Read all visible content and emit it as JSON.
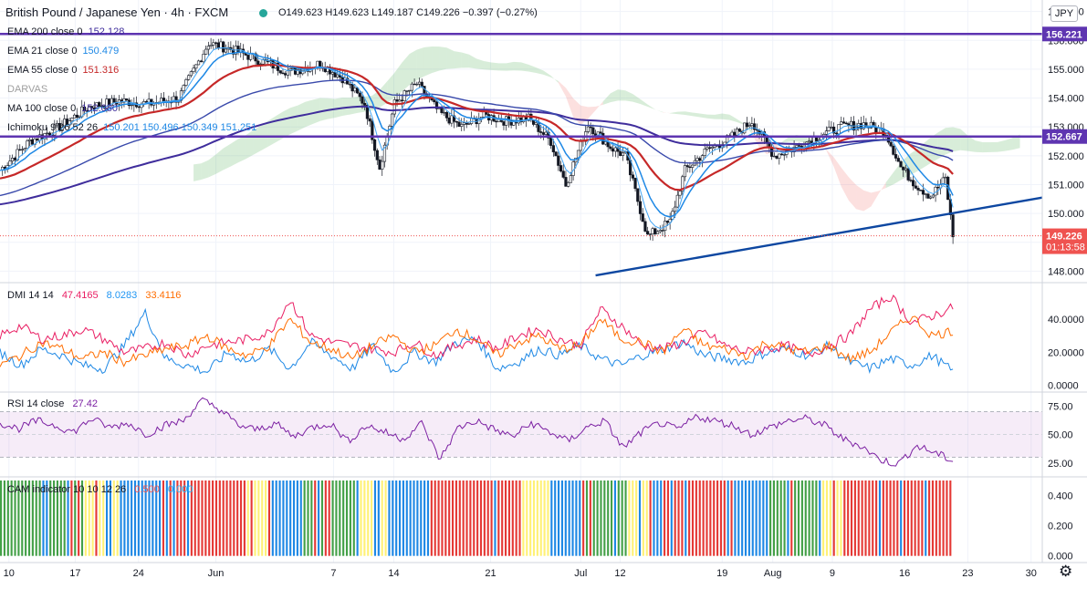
{
  "header": {
    "symbol": "British Pound / Japanese Yen · 4h · FXCM",
    "ohlc": "O149.623 H149.623 L149.187 C149.226 −0.397 (−0.27%)",
    "currency": "JPY"
  },
  "price_pane": {
    "indicators": [
      {
        "label": "EMA 200 close 0",
        "value": "152.128",
        "color": "#3f2d9c"
      },
      {
        "label": "EMA 21 close 0",
        "value": "150.479",
        "color": "#1e88e5"
      },
      {
        "label": "EMA 55 close 0",
        "value": "151.316",
        "color": "#c62828"
      },
      {
        "label": "DARVAS",
        "value": "",
        "color": "#9e9e9e"
      },
      {
        "label": "MA 100 close 0",
        "value": "152.080",
        "color": "#3f2d9c"
      },
      {
        "label": "Ichimoku 9 26 52 26",
        "value": "150.201 150.496 150.349 151.251",
        "color": "#1e88e5"
      }
    ],
    "level_labels": [
      {
        "text": "156.221",
        "bg": "#5e35b1"
      },
      {
        "text": "152.667",
        "bg": "#5e35b1"
      },
      {
        "text": "149.226",
        "bg": "#ef5350"
      },
      {
        "text": "01:13:58",
        "bg": "#ef5350"
      }
    ]
  },
  "dmi_pane": {
    "label": "DMI 14 14",
    "values": [
      {
        "value": "47.4165",
        "color": "#e91e63"
      },
      {
        "value": "8.0283",
        "color": "#2196f3"
      },
      {
        "value": "33.4116",
        "color": "#ff6d00"
      }
    ]
  },
  "rsi_pane": {
    "label": "RSI 14 close",
    "value": "27.42",
    "color": "#7b1fa2"
  },
  "cam_pane": {
    "label": "CAM indicator 10 10 12 26",
    "values": [
      {
        "value": "0.500",
        "color": "#ef5350"
      },
      {
        "value": "0.000",
        "color": "#29b6f6"
      }
    ]
  },
  "colors": {
    "up": "#26a69a",
    "down": "#ef5350",
    "ema200": "#3f2d9c",
    "ema21": "#1e88e5",
    "ema55": "#c62828",
    "ma100": "#5e35b1",
    "dmi_plus": "#1e88e5",
    "dmi_minus": "#e91e63",
    "adx": "#ff6d00",
    "rsi": "#7b1fa2",
    "trendline": "#0d47a1",
    "hline": "#5e35b1"
  },
  "chart_data": [
    {
      "type": "candlestick",
      "name": "price",
      "x_tick_labels": [
        "10",
        "17",
        "24",
        "Jun",
        "7",
        "14",
        "21",
        "Jul",
        "12",
        "19",
        "Aug",
        "9",
        "16",
        "23",
        "30"
      ],
      "y_tick_labels": [
        "148.000",
        "149.000",
        "150.000",
        "151.000",
        "152.000",
        "153.000",
        "154.000",
        "155.000",
        "156.000",
        "157.000"
      ],
      "ylim": [
        147.6,
        157.4
      ],
      "close_path": [
        [
          0,
          151.5
        ],
        [
          4,
          152.5
        ],
        [
          8,
          153.0
        ],
        [
          12,
          153.7
        ],
        [
          16,
          153.9
        ],
        [
          20,
          153.8
        ],
        [
          24,
          154.0
        ],
        [
          28,
          155.9
        ],
        [
          31,
          155.7
        ],
        [
          35,
          155.3
        ],
        [
          39,
          154.9
        ],
        [
          43,
          155.2
        ],
        [
          46,
          154.7
        ],
        [
          49,
          153.8
        ],
        [
          51,
          151.6
        ],
        [
          53,
          153.8
        ],
        [
          56,
          154.5
        ],
        [
          59,
          153.5
        ],
        [
          62,
          153.0
        ],
        [
          65,
          153.4
        ],
        [
          68,
          153.2
        ],
        [
          71,
          153.3
        ],
        [
          74,
          152.5
        ],
        [
          76,
          151.0
        ],
        [
          79,
          153.1
        ],
        [
          82,
          152.3
        ],
        [
          84,
          152.0
        ],
        [
          87,
          149.2
        ],
        [
          90,
          149.7
        ],
        [
          92,
          151.5
        ],
        [
          95,
          152.2
        ],
        [
          98,
          152.6
        ],
        [
          101,
          153.2
        ],
        [
          104,
          152.0
        ],
        [
          107,
          152.3
        ],
        [
          110,
          152.7
        ],
        [
          113,
          153.0
        ],
        [
          116,
          153.1
        ],
        [
          119,
          152.8
        ],
        [
          121,
          151.6
        ],
        [
          123,
          151.0
        ],
        [
          125,
          150.6
        ],
        [
          127,
          151.2
        ],
        [
          128,
          149.2
        ]
      ],
      "horizontal_levels": [
        156.221,
        152.667
      ],
      "last_price": 149.226,
      "trendline": [
        [
          80,
          147.85
        ],
        [
          140,
          150.55
        ]
      ]
    },
    {
      "type": "line",
      "name": "DMI 14 14",
      "y_tick_labels": [
        "0.0000",
        "20.0000",
        "40.0000"
      ],
      "ylim": [
        -2,
        60
      ],
      "series": [
        {
          "name": "+DI",
          "values": [
            20,
            12,
            22,
            18,
            12,
            10,
            24,
            44,
            16,
            12,
            8,
            20,
            14,
            22,
            10,
            26,
            18,
            10,
            24,
            8,
            20,
            14,
            26,
            28,
            10,
            14,
            22,
            18,
            24,
            16,
            12,
            18,
            22,
            26,
            18,
            16,
            14,
            20,
            22,
            18,
            24,
            14,
            10,
            16,
            12,
            18,
            8
          ]
        },
        {
          "name": "-DI",
          "values": [
            30,
            36,
            28,
            30,
            34,
            28,
            20,
            22,
            26,
            18,
            24,
            26,
            28,
            32,
            52,
            30,
            26,
            24,
            22,
            20,
            26,
            18,
            24,
            28,
            22,
            30,
            34,
            28,
            24,
            46,
            36,
            24,
            22,
            26,
            32,
            24,
            20,
            22,
            24,
            18,
            24,
            30,
            46,
            54,
            38,
            42,
            47
          ]
        },
        {
          "name": "ADX",
          "values": [
            12,
            18,
            26,
            22,
            16,
            20,
            14,
            18,
            22,
            24,
            30,
            22,
            18,
            24,
            40,
            26,
            22,
            16,
            24,
            30,
            20,
            24,
            34,
            28,
            18,
            26,
            30,
            22,
            24,
            40,
            28,
            26,
            20,
            34,
            24,
            22,
            18,
            26,
            22,
            20,
            24,
            16,
            20,
            32,
            42,
            30,
            33
          ]
        }
      ]
    },
    {
      "type": "line",
      "name": "RSI 14 close",
      "y_tick_labels": [
        "25.00",
        "50.00",
        "75.00"
      ],
      "ylim": [
        16,
        84
      ],
      "bands": [
        30,
        70
      ],
      "series": [
        {
          "name": "RSI",
          "values": [
            60,
            55,
            62,
            58,
            52,
            64,
            56,
            60,
            50,
            58,
            62,
            80,
            72,
            58,
            54,
            60,
            48,
            56,
            60,
            44,
            58,
            52,
            46,
            60,
            28,
            56,
            62,
            54,
            48,
            60,
            52,
            44,
            56,
            62,
            38,
            52,
            60,
            54,
            66,
            62,
            58,
            50,
            56,
            62,
            64,
            58,
            46,
            40,
            28,
            24,
            40,
            34,
            27
          ]
        }
      ]
    },
    {
      "type": "bar",
      "name": "CAM indicator 10 10 12 26",
      "y_tick_labels": [
        "0.000",
        "0.200",
        "0.400"
      ],
      "ylim": [
        -0.02,
        0.5
      ],
      "bar_value": 0.5,
      "color_runs": [
        {
          "color": "green",
          "count": 24
        },
        {
          "color": "yellow",
          "count": 10
        },
        {
          "color": "blue",
          "count": 14
        },
        {
          "color": "red",
          "count": 22
        },
        {
          "color": "yellow",
          "count": 6
        },
        {
          "color": "blue",
          "count": 10
        },
        {
          "color": "green",
          "count": 16
        },
        {
          "color": "yellow",
          "count": 8
        },
        {
          "color": "blue",
          "count": 12
        },
        {
          "color": "red",
          "count": 26
        },
        {
          "color": "yellow",
          "count": 8
        },
        {
          "color": "blue",
          "count": 10
        },
        {
          "color": "green",
          "count": 12
        },
        {
          "color": "yellow",
          "count": 6
        },
        {
          "color": "red",
          "count": 24
        },
        {
          "color": "blue",
          "count": 10
        },
        {
          "color": "green",
          "count": 14
        },
        {
          "color": "yellow",
          "count": 8
        },
        {
          "color": "red",
          "count": 30
        }
      ]
    }
  ]
}
